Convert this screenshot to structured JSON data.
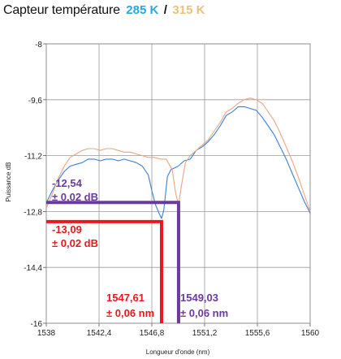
{
  "title": {
    "main": "Capteur température",
    "t285": "285 K",
    "slash": "/",
    "t315": "315 K"
  },
  "colors": {
    "series_285": "#3a7fd5",
    "series_315": "#e9a682",
    "annotation_red": "#e8191e",
    "annotation_purple": "#6b3a9e",
    "grid": "#9a9a9a"
  },
  "chart_data": {
    "type": "line",
    "xlabel": "Longueur d'onde (nm)",
    "ylabel": "Puissance dB",
    "xlim": [
      1538,
      1560
    ],
    "ylim": [
      -16,
      -8
    ],
    "xticks": [
      "1538",
      "1542,4",
      "1546,8",
      "1551,2",
      "1555,6",
      "1560"
    ],
    "yticks": [
      "-8",
      "-9,6",
      "-11,2",
      "-12,8",
      "-14,4",
      "-16"
    ],
    "grid": true,
    "series": [
      {
        "name": "285 K",
        "color": "#3a7fd5",
        "x": [
          1538.0,
          1538.5,
          1539.0,
          1539.5,
          1540.0,
          1540.5,
          1541.0,
          1541.5,
          1542.0,
          1542.5,
          1543.0,
          1543.5,
          1544.0,
          1544.5,
          1545.0,
          1545.5,
          1546.0,
          1546.5,
          1546.8,
          1547.1,
          1547.4,
          1547.61,
          1547.8,
          1548.1,
          1548.4,
          1548.7,
          1549.0,
          1549.5,
          1550.0,
          1550.5,
          1551.0,
          1551.5,
          1552.0,
          1552.5,
          1553.0,
          1553.5,
          1554.0,
          1554.5,
          1555.0,
          1555.5,
          1556.0,
          1556.5,
          1557.0,
          1557.5,
          1558.0,
          1558.5,
          1559.0,
          1559.5,
          1560.0
        ],
        "y": [
          -12.55,
          -12.2,
          -11.9,
          -11.65,
          -11.5,
          -11.45,
          -11.4,
          -11.3,
          -11.3,
          -11.35,
          -11.3,
          -11.3,
          -11.35,
          -11.3,
          -11.35,
          -11.4,
          -11.5,
          -11.75,
          -12.2,
          -12.6,
          -12.85,
          -13.0,
          -12.75,
          -11.8,
          -11.6,
          -11.55,
          -11.5,
          -11.35,
          -11.3,
          -11.05,
          -10.95,
          -10.8,
          -10.6,
          -10.35,
          -10.05,
          -9.95,
          -9.8,
          -9.8,
          -9.85,
          -9.9,
          -10.1,
          -10.35,
          -10.6,
          -10.95,
          -11.3,
          -11.7,
          -12.1,
          -12.5,
          -12.85
        ]
      },
      {
        "name": "315 K",
        "color": "#e9a682",
        "x": [
          1538.0,
          1538.5,
          1539.0,
          1539.5,
          1540.0,
          1540.5,
          1541.0,
          1541.5,
          1542.0,
          1542.5,
          1543.0,
          1543.5,
          1544.0,
          1544.5,
          1545.0,
          1545.5,
          1546.0,
          1546.5,
          1547.0,
          1547.5,
          1548.0,
          1548.5,
          1548.8,
          1549.03,
          1549.3,
          1549.6,
          1550.0,
          1550.5,
          1551.0,
          1551.5,
          1552.0,
          1552.5,
          1553.0,
          1553.5,
          1554.0,
          1554.5,
          1555.0,
          1555.5,
          1556.0,
          1556.5,
          1557.0,
          1557.5,
          1558.0,
          1558.5,
          1559.0,
          1559.5,
          1560.0
        ],
        "y": [
          -12.7,
          -12.3,
          -11.85,
          -11.5,
          -11.25,
          -11.15,
          -11.05,
          -11.0,
          -11.0,
          -11.05,
          -11.0,
          -11.0,
          -11.05,
          -11.1,
          -11.1,
          -11.15,
          -11.2,
          -11.25,
          -11.25,
          -11.3,
          -11.3,
          -11.6,
          -12.3,
          -12.6,
          -12.0,
          -11.4,
          -11.2,
          -11.05,
          -10.9,
          -10.75,
          -10.5,
          -10.25,
          -9.95,
          -9.85,
          -9.7,
          -9.6,
          -9.55,
          -9.6,
          -9.7,
          -9.95,
          -10.2,
          -10.55,
          -10.95,
          -11.35,
          -11.8,
          -12.3,
          -12.8
        ]
      }
    ],
    "annotations": [
      {
        "label1": "-12,54",
        "label2": "± 0,02 dB",
        "color": "#6b3a9e",
        "y": -12.54,
        "x": 1549.03
      },
      {
        "label1": "-13,09",
        "label2": "± 0,02 dB",
        "color": "#e8191e",
        "y": -13.09,
        "x": 1547.61
      },
      {
        "label1": "1547,61",
        "label2": "± 0,06 nm",
        "color": "#e8191e"
      },
      {
        "label1": "1549,03",
        "label2": "± 0,06 nm",
        "color": "#6b3a9e"
      }
    ]
  }
}
